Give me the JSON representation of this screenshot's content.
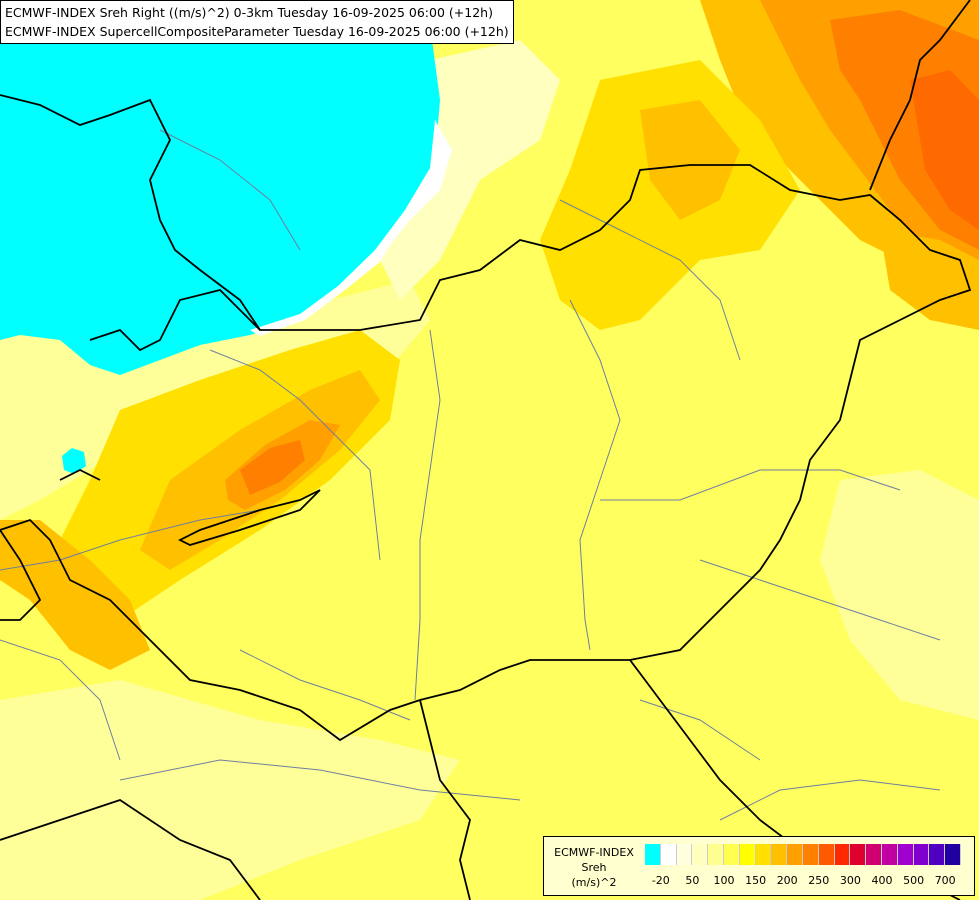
{
  "header": {
    "line1": "ECMWF-INDEX Sreh Right ((m/s)^2) 0-3km Tuesday 16-09-2025 06:00 (+12h)",
    "line2": "ECMWF-INDEX SupercellCompositeParameter Tuesday 16-09-2025 06:00 (+12h)"
  },
  "legend": {
    "title1": "ECMWF-INDEX",
    "title2": "Sreh",
    "unit": "(m/s)^2",
    "colors": [
      "#00ffff",
      "#ffffff",
      "#ffffe0",
      "#ffffc0",
      "#ffff90",
      "#ffff50",
      "#ffff00",
      "#ffe000",
      "#ffc000",
      "#ffa000",
      "#ff8000",
      "#ff5a00",
      "#ff2800",
      "#e00030",
      "#d00070",
      "#c000a0",
      "#a000d0",
      "#8000d0",
      "#5000c0",
      "#2000a0"
    ],
    "ticks": [
      "-20",
      "50",
      "100",
      "150",
      "200",
      "250",
      "300",
      "400",
      "500",
      "700"
    ]
  },
  "map": {
    "background": "#ffff60",
    "regions": [
      "cyan-low-region",
      "orange-northeast",
      "orange-ne-inner",
      "orange-central-west",
      "orange-cw-inner",
      "orange-cw-core",
      "orange-southwest",
      "light-yellow-south"
    ]
  }
}
